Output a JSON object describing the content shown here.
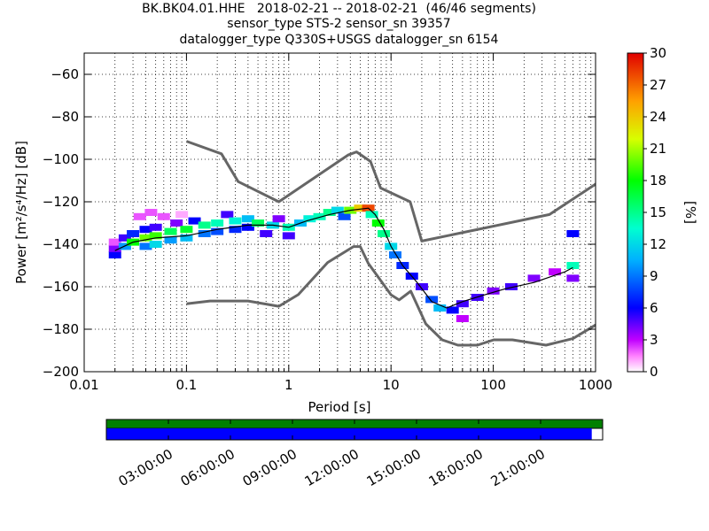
{
  "title": {
    "line1": "BK.BK04.01.HHE   2018-02-21 -- 2018-02-21  (46/46 segments)",
    "line2": "sensor_type STS-2 sensor_sn 39357",
    "line3": "datalogger_type Q330S+USGS datalogger_sn 6154"
  },
  "chart_data": {
    "type": "heatmap",
    "xlabel": "Period [s]",
    "ylabel": "Power [m²/s⁴/Hz] [dB]",
    "x_scale": "log",
    "xlim": [
      0.01,
      1000
    ],
    "ylim": [
      -200,
      -50
    ],
    "x_ticks": [
      0.01,
      0.1,
      1,
      10,
      100,
      1000
    ],
    "x_tick_labels": [
      "0.01",
      "0.1",
      "1",
      "10",
      "100",
      "1000"
    ],
    "y_ticks": [
      -200,
      -180,
      -160,
      -140,
      -120,
      -100,
      -80,
      -60
    ],
    "y_tick_labels": [
      "−200",
      "−180",
      "−160",
      "−140",
      "−120",
      "−100",
      "−80",
      "−60"
    ],
    "grid": "dotted",
    "colorbar": {
      "label": "[%]",
      "range": [
        0,
        30
      ],
      "ticks": [
        0,
        3,
        6,
        9,
        12,
        15,
        18,
        21,
        24,
        27,
        30
      ],
      "tick_labels": [
        "0",
        "3",
        "6",
        "9",
        "12",
        "15",
        "18",
        "21",
        "24",
        "27",
        "30"
      ]
    },
    "noise_models": [
      {
        "name": "NHNM",
        "points": [
          [
            0.1,
            -91.5
          ],
          [
            0.22,
            -97.4
          ],
          [
            0.32,
            -110.5
          ],
          [
            0.8,
            -120
          ],
          [
            3.8,
            -98
          ],
          [
            4.6,
            -96.5
          ],
          [
            6.3,
            -101
          ],
          [
            7.9,
            -113.5
          ],
          [
            15.4,
            -120
          ],
          [
            20,
            -138.5
          ],
          [
            354,
            -126
          ],
          [
            10000,
            -80
          ]
        ]
      },
      {
        "name": "NLNM",
        "points": [
          [
            0.1,
            -168
          ],
          [
            0.17,
            -166.7
          ],
          [
            0.4,
            -166.7
          ],
          [
            0.8,
            -169.2
          ],
          [
            1.24,
            -163.7
          ],
          [
            2.4,
            -148.6
          ],
          [
            4.3,
            -141.1
          ],
          [
            5,
            -141.1
          ],
          [
            6,
            -149
          ],
          [
            10,
            -163.8
          ],
          [
            12,
            -166.2
          ],
          [
            15.6,
            -162.1
          ],
          [
            21.9,
            -177.5
          ],
          [
            31.6,
            -185
          ],
          [
            45,
            -187.5
          ],
          [
            70,
            -187.5
          ],
          [
            101,
            -185
          ],
          [
            154,
            -185
          ],
          [
            328,
            -187.5
          ],
          [
            600,
            -184.4
          ],
          [
            1000,
            -178
          ]
        ]
      }
    ],
    "mode_line": [
      [
        0.02,
        -143
      ],
      [
        0.03,
        -139
      ],
      [
        0.05,
        -137
      ],
      [
        0.1,
        -136
      ],
      [
        0.2,
        -133
      ],
      [
        0.4,
        -131
      ],
      [
        0.7,
        -131
      ],
      [
        1.0,
        -132
      ],
      [
        1.5,
        -129
      ],
      [
        2.5,
        -126
      ],
      [
        4.0,
        -124
      ],
      [
        6.0,
        -123
      ],
      [
        7.0,
        -126
      ],
      [
        8.5,
        -133
      ],
      [
        10.0,
        -141
      ],
      [
        13.0,
        -150
      ],
      [
        18.0,
        -158
      ],
      [
        25.0,
        -167
      ],
      [
        35.0,
        -170
      ],
      [
        50.0,
        -167
      ],
      [
        80.0,
        -164
      ],
      [
        130.0,
        -161
      ],
      [
        250.0,
        -158
      ],
      [
        500.0,
        -153
      ],
      [
        600.0,
        -151
      ]
    ],
    "density": [
      {
        "period": 0.02,
        "db": -145,
        "pct": 6
      },
      {
        "period": 0.02,
        "db": -142,
        "pct": 4
      },
      {
        "period": 0.02,
        "db": -139,
        "pct": 2
      },
      {
        "period": 0.025,
        "db": -141,
        "pct": 10
      },
      {
        "period": 0.025,
        "db": -137,
        "pct": 5
      },
      {
        "period": 0.03,
        "db": -139,
        "pct": 18
      },
      {
        "period": 0.03,
        "db": -135,
        "pct": 7
      },
      {
        "period": 0.035,
        "db": -127,
        "pct": 2
      },
      {
        "period": 0.04,
        "db": -141,
        "pct": 9
      },
      {
        "period": 0.04,
        "db": -137,
        "pct": 20
      },
      {
        "period": 0.04,
        "db": -133,
        "pct": 6
      },
      {
        "period": 0.045,
        "db": -125,
        "pct": 2
      },
      {
        "period": 0.05,
        "db": -140,
        "pct": 12
      },
      {
        "period": 0.05,
        "db": -136,
        "pct": 19
      },
      {
        "period": 0.05,
        "db": -132,
        "pct": 5
      },
      {
        "period": 0.06,
        "db": -127,
        "pct": 2
      },
      {
        "period": 0.07,
        "db": -138,
        "pct": 10
      },
      {
        "period": 0.07,
        "db": -134,
        "pct": 16
      },
      {
        "period": 0.08,
        "db": -130,
        "pct": 4
      },
      {
        "period": 0.09,
        "db": -126,
        "pct": 1
      },
      {
        "period": 0.1,
        "db": -137,
        "pct": 11
      },
      {
        "period": 0.1,
        "db": -133,
        "pct": 17
      },
      {
        "period": 0.12,
        "db": -129,
        "pct": 6
      },
      {
        "period": 0.15,
        "db": -135,
        "pct": 9
      },
      {
        "period": 0.15,
        "db": -131,
        "pct": 15
      },
      {
        "period": 0.2,
        "db": -134,
        "pct": 8
      },
      {
        "period": 0.2,
        "db": -130,
        "pct": 14
      },
      {
        "period": 0.25,
        "db": -126,
        "pct": 5
      },
      {
        "period": 0.3,
        "db": -133,
        "pct": 7
      },
      {
        "period": 0.3,
        "db": -129,
        "pct": 13
      },
      {
        "period": 0.4,
        "db": -132,
        "pct": 6
      },
      {
        "period": 0.4,
        "db": -128,
        "pct": 11
      },
      {
        "period": 0.5,
        "db": -130,
        "pct": 16
      },
      {
        "period": 0.6,
        "db": -135,
        "pct": 5
      },
      {
        "period": 0.7,
        "db": -131,
        "pct": 12
      },
      {
        "period": 0.8,
        "db": -128,
        "pct": 4
      },
      {
        "period": 1.0,
        "db": -132,
        "pct": 14
      },
      {
        "period": 1.0,
        "db": -136,
        "pct": 5
      },
      {
        "period": 1.3,
        "db": -130,
        "pct": 11
      },
      {
        "period": 1.6,
        "db": -128,
        "pct": 13
      },
      {
        "period": 2.0,
        "db": -127,
        "pct": 14
      },
      {
        "period": 2.5,
        "db": -125,
        "pct": 15
      },
      {
        "period": 3.0,
        "db": -124,
        "pct": 12
      },
      {
        "period": 3.5,
        "db": -127,
        "pct": 8
      },
      {
        "period": 4.0,
        "db": -124,
        "pct": 20
      },
      {
        "period": 5.0,
        "db": -123,
        "pct": 24
      },
      {
        "period": 6.0,
        "db": -123,
        "pct": 28
      },
      {
        "period": 6.5,
        "db": -126,
        "pct": 14
      },
      {
        "period": 7.5,
        "db": -130,
        "pct": 18
      },
      {
        "period": 8.5,
        "db": -135,
        "pct": 15
      },
      {
        "period": 10.0,
        "db": -141,
        "pct": 12
      },
      {
        "period": 11.0,
        "db": -145,
        "pct": 9
      },
      {
        "period": 13.0,
        "db": -150,
        "pct": 7
      },
      {
        "period": 16.0,
        "db": -155,
        "pct": 6
      },
      {
        "period": 20.0,
        "db": -160,
        "pct": 5
      },
      {
        "period": 25.0,
        "db": -166,
        "pct": 8
      },
      {
        "period": 30.0,
        "db": -170,
        "pct": 11
      },
      {
        "period": 40.0,
        "db": -171,
        "pct": 6
      },
      {
        "period": 50.0,
        "db": -168,
        "pct": 5
      },
      {
        "period": 50.0,
        "db": -175,
        "pct": 3
      },
      {
        "period": 70.0,
        "db": -165,
        "pct": 5
      },
      {
        "period": 100.0,
        "db": -162,
        "pct": 4
      },
      {
        "period": 150.0,
        "db": -160,
        "pct": 5
      },
      {
        "period": 250.0,
        "db": -156,
        "pct": 4
      },
      {
        "period": 400.0,
        "db": -153,
        "pct": 3
      },
      {
        "period": 600.0,
        "db": -135,
        "pct": 6
      },
      {
        "period": 600.0,
        "db": -150,
        "pct": 14
      },
      {
        "period": 600.0,
        "db": -156,
        "pct": 4
      }
    ]
  },
  "timeline": {
    "ticks": [
      "03:00:00",
      "06:00:00",
      "09:00:00",
      "12:00:00",
      "15:00:00",
      "18:00:00",
      "21:00:00"
    ],
    "top_bar_color": "#008000",
    "bottom_bar_color": "#0000ff",
    "coverage_fraction": 0.978
  }
}
